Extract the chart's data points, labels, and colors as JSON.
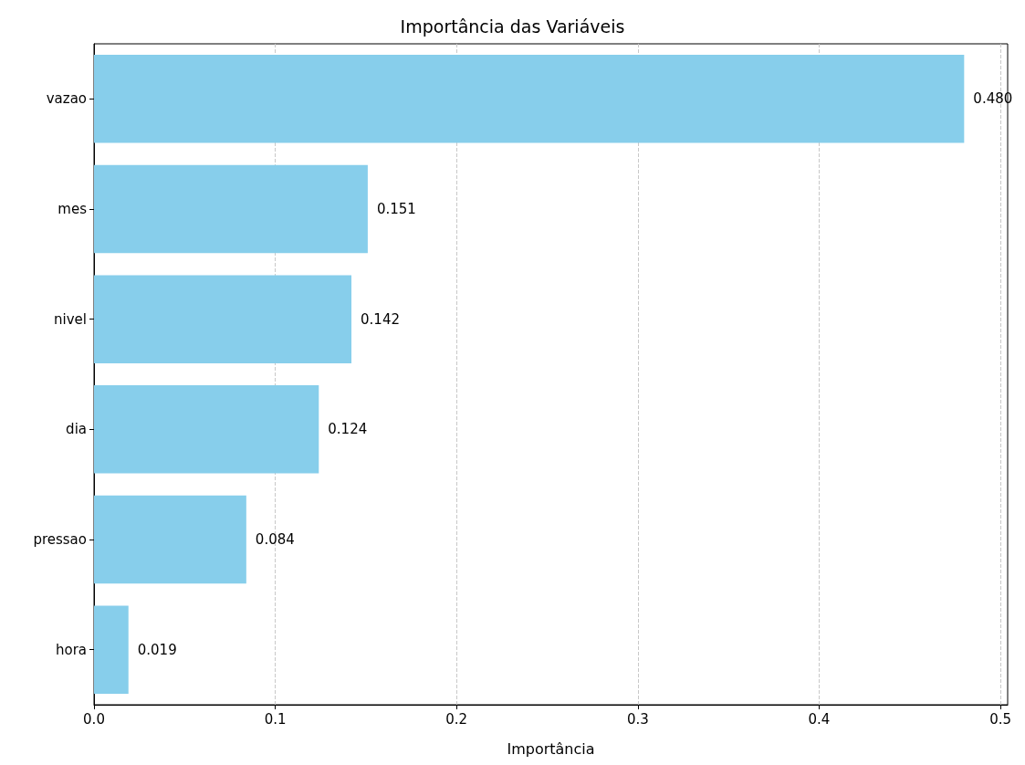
{
  "chart_data": {
    "type": "bar",
    "orientation": "horizontal",
    "title": "Importância das Variáveis",
    "xlabel": "Importância",
    "categories": [
      "vazao",
      "mes",
      "nivel",
      "dia",
      "pressao",
      "hora"
    ],
    "values": [
      0.48,
      0.151,
      0.142,
      0.124,
      0.084,
      0.019
    ],
    "value_labels": [
      "0.480",
      "0.151",
      "0.142",
      "0.124",
      "0.084",
      "0.019"
    ],
    "color": "#87ceeb",
    "xlim": [
      0,
      0.504
    ],
    "xticks": [
      {
        "value": 0,
        "label": "0.0"
      },
      0.1,
      0.2,
      0.3,
      0.4,
      0.5
    ],
    "grid": "x",
    "line_style": "dashed"
  }
}
